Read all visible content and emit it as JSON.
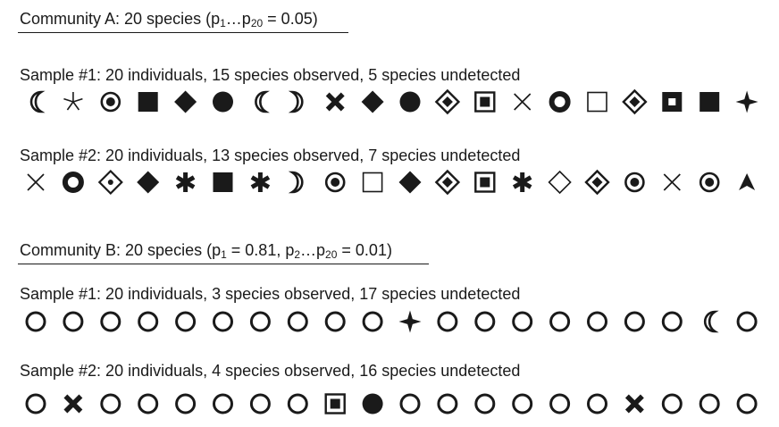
{
  "community_a": {
    "heading": {
      "prefix": "Community A: 20 species (p",
      "sub1": "1",
      "mid": "…p",
      "sub2": "20",
      "suffix": " = 0.05)"
    },
    "samples": [
      {
        "label": "Sample #1: 20 individuals, 15 species observed, 5 species undetected",
        "symbols": [
          "crescent-left",
          "asterisk-thin",
          "target-dot",
          "square-filled",
          "diamond-filled",
          "circle-filled",
          "crescent-left",
          "crescent-right",
          "x-bold",
          "diamond-filled",
          "circle-filled",
          "diamond-nested",
          "square-nested",
          "x-thin",
          "ring-thick",
          "square-open",
          "diamond-nested",
          "square-filled-hole",
          "square-filled",
          "star4-filled"
        ]
      },
      {
        "label": "Sample #2: 20 individuals, 13 species observed, 7 species undetected",
        "symbols": [
          "x-thin",
          "ring-thick",
          "diamond-dot",
          "diamond-filled",
          "asterisk-bold",
          "square-filled",
          "asterisk-bold",
          "crescent-right",
          "target-dot",
          "square-open",
          "diamond-filled",
          "diamond-nested",
          "square-nested",
          "asterisk-bold",
          "diamond-open",
          "diamond-nested",
          "target-dot",
          "x-thin",
          "target-dot",
          "arrowhead-up"
        ]
      }
    ]
  },
  "community_b": {
    "heading": {
      "prefix": "Community B: 20 species (p",
      "sub1": "1",
      "mid": " = 0.81, p",
      "sub2": "2",
      "mid2": "…p",
      "sub3": "20",
      "suffix": " = 0.01)"
    },
    "samples": [
      {
        "label": "Sample #1: 20 individuals, 3 species observed, 17 species undetected",
        "symbols": [
          "ring",
          "ring",
          "ring",
          "ring",
          "ring",
          "ring",
          "ring",
          "ring",
          "ring",
          "ring",
          "star4-filled",
          "ring",
          "ring",
          "ring",
          "ring",
          "ring",
          "ring",
          "ring",
          "crescent-left",
          "ring"
        ]
      },
      {
        "label": "Sample #2: 20 individuals, 4 species observed, 16 species undetected",
        "symbols": [
          "ring",
          "x-bold",
          "ring",
          "ring",
          "ring",
          "ring",
          "ring",
          "ring",
          "square-nested",
          "circle-filled",
          "ring",
          "ring",
          "ring",
          "ring",
          "ring",
          "ring",
          "x-bold",
          "ring",
          "ring",
          "ring"
        ]
      }
    ]
  },
  "colors": {
    "ink": "#1a1a1a",
    "background": "#ffffff"
  }
}
